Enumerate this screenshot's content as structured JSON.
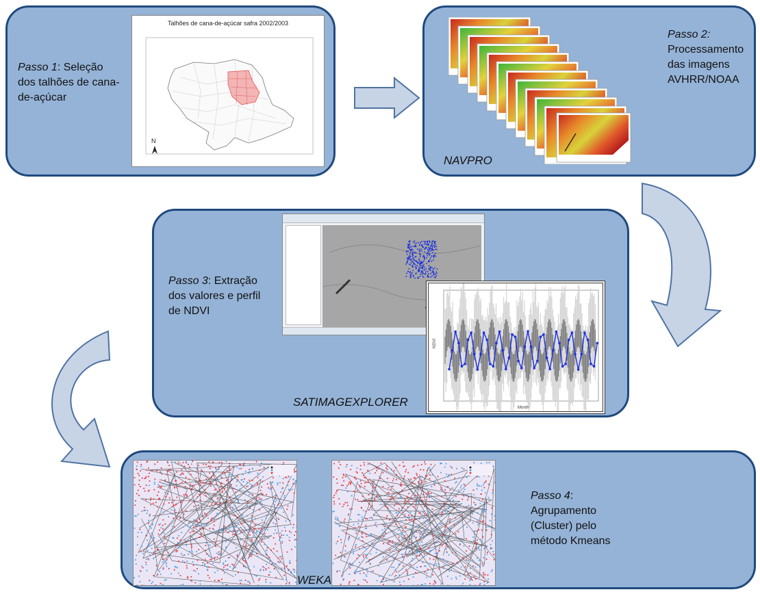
{
  "step1": {
    "label": "Passo 1",
    "text": ": Seleção dos talhões de cana-de-açúcar",
    "map_title": "Talhões de cana-de-açúcar safra 2002/2003",
    "north": "N"
  },
  "step2": {
    "label": "Passo 2:",
    "text": "Processamento das imagens AVHRR/NOAA",
    "tool": "NAVPRO"
  },
  "step3": {
    "label": "Passo 3",
    "text": ": Extração dos valores e perfil de NDVI",
    "tool": "SATIMAGEXPLORER",
    "chart_ylabel": "NDVI",
    "chart_xlabel": "Month"
  },
  "step4": {
    "label": "Passo 4",
    "text": ": Agrupamento (Cluster) pelo método Kmeans",
    "tool": "WEKA"
  },
  "colors": {
    "panel_fill": "#95b3d7",
    "panel_border": "#1f497d",
    "arrow_fill": "#c6d4e6",
    "cluster_red": "#e8393c",
    "cluster_blue": "#4f9fe8",
    "ndvi_line": "#1a2ee0"
  }
}
